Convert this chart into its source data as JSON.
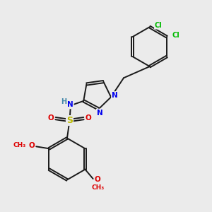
{
  "bg_color": "#ebebeb",
  "bond_color": "#1a1a1a",
  "N_color": "#0000ee",
  "O_color": "#dd0000",
  "S_color": "#bbbb00",
  "Cl_color": "#00bb00",
  "H_color": "#4488aa",
  "lw": 1.4,
  "dbo": 0.055,
  "xlim": [
    0,
    10
  ],
  "ylim": [
    0,
    10
  ]
}
